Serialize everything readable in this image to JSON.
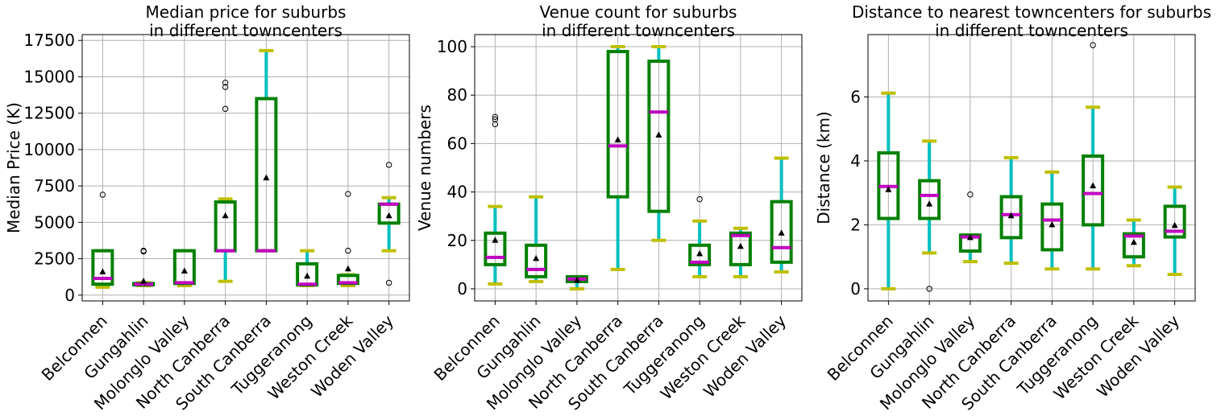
{
  "colors": {
    "box": "#008000",
    "whisker": "#00bfbf",
    "cap": "#bfbf00",
    "median": "#bf00bf",
    "mean": "#000000",
    "grid": "#b0b0b0"
  },
  "chart_data": [
    {
      "type": "box",
      "title_line1": "Median price for suburbs",
      "title_line2": " in different towncenters",
      "xlabel": "",
      "ylabel": "Median Price (K)",
      "ylim": [
        -400,
        17900
      ],
      "yticks": [
        0,
        2500,
        5000,
        7500,
        10000,
        12500,
        15000,
        17500
      ],
      "ytick_labels": [
        "0",
        "2500",
        "5000",
        "7500",
        "10000",
        "12500",
        "15000",
        "17500"
      ],
      "grid": true,
      "categories": [
        "Belconnen",
        "Gungahlin",
        "Molonglo Valley",
        "North Canberra",
        "South Canberra",
        "Tuggeranong",
        "Weston Creek",
        "Woden Valley"
      ],
      "boxes": [
        {
          "whislo": 550,
          "q1": 750,
          "med": 1150,
          "q3": 3050,
          "whishi": 3050,
          "mean": 1600,
          "fliers": [
            6900
          ]
        },
        {
          "whislo": 650,
          "q1": 700,
          "med": 750,
          "q3": 800,
          "whishi": 850,
          "mean": 950,
          "fliers": [
            3050,
            3000
          ]
        },
        {
          "whislo": 650,
          "q1": 800,
          "med": 850,
          "q3": 3050,
          "whishi": 3050,
          "mean": 1650,
          "fliers": []
        },
        {
          "whislo": 950,
          "q1": 3050,
          "med": 3050,
          "q3": 6400,
          "whishi": 6600,
          "mean": 5450,
          "fliers": [
            12800,
            14300,
            14600
          ]
        },
        {
          "whislo": 3050,
          "q1": 3050,
          "med": 3050,
          "q3": 13500,
          "whishi": 16800,
          "mean": 8050,
          "fliers": []
        },
        {
          "whislo": 650,
          "q1": 700,
          "med": 750,
          "q3": 2150,
          "whishi": 3050,
          "mean": 1300,
          "fliers": []
        },
        {
          "whislo": 650,
          "q1": 800,
          "med": 850,
          "q3": 1350,
          "whishi": 1400,
          "mean": 1800,
          "fliers": [
            3050,
            6950
          ]
        },
        {
          "whislo": 3050,
          "q1": 4950,
          "med": 6250,
          "q3": 6250,
          "whishi": 6700,
          "mean": 5450,
          "fliers": [
            8950,
            850
          ]
        }
      ]
    },
    {
      "type": "box",
      "title_line1": "Venue count for suburbs",
      "title_line2": " in different towncenters",
      "xlabel": "",
      "ylabel": "Venue numbers",
      "ylim": [
        -5,
        105
      ],
      "yticks": [
        0,
        20,
        40,
        60,
        80,
        100
      ],
      "ytick_labels": [
        "0",
        "20",
        "40",
        "60",
        "80",
        "100"
      ],
      "grid": true,
      "categories": [
        "Belconnen",
        "Gungahlin",
        "Molonglo Valley",
        "North Canberra",
        "South Canberra",
        "Tuggeranong",
        "Weston Creek",
        "Woden Valley"
      ],
      "boxes": [
        {
          "whislo": 2,
          "q1": 10,
          "med": 13,
          "q3": 23,
          "whishi": 34,
          "mean": 20,
          "fliers": [
            68,
            70,
            71
          ]
        },
        {
          "whislo": 3,
          "q1": 5,
          "med": 8,
          "q3": 18,
          "whishi": 38,
          "mean": 12.5,
          "fliers": []
        },
        {
          "whislo": 0,
          "q1": 3,
          "med": 4,
          "q3": 5,
          "whishi": 5,
          "mean": 3.5,
          "fliers": []
        },
        {
          "whislo": 8,
          "q1": 38,
          "med": 59,
          "q3": 98,
          "whishi": 100,
          "mean": 61.5,
          "fliers": []
        },
        {
          "whislo": 20,
          "q1": 32,
          "med": 73,
          "q3": 94,
          "whishi": 100,
          "mean": 63.5,
          "fliers": []
        },
        {
          "whislo": 5,
          "q1": 10,
          "med": 11,
          "q3": 18,
          "whishi": 28,
          "mean": 14.5,
          "fliers": [
            37
          ]
        },
        {
          "whislo": 5,
          "q1": 10,
          "med": 22,
          "q3": 23,
          "whishi": 25,
          "mean": 17.5,
          "fliers": []
        },
        {
          "whislo": 7,
          "q1": 11,
          "med": 17,
          "q3": 36,
          "whishi": 54,
          "mean": 23,
          "fliers": []
        }
      ]
    },
    {
      "type": "box",
      "title_line1": "Distance to nearest towncenters for suburbs",
      "title_line2": "in different towncenters",
      "xlabel": "",
      "ylabel": "Distance (km)",
      "ylim": [
        -0.38,
        7.95
      ],
      "yticks": [
        0,
        2,
        4,
        6
      ],
      "ytick_labels": [
        "0",
        "2",
        "4",
        "6"
      ],
      "grid": true,
      "categories": [
        "Belconnen",
        "Gungahlin",
        "Molonglo Valley",
        "North Canberra",
        "South Canberra",
        "Tuggeranong",
        "Weston Creek",
        "Woden Valley"
      ],
      "boxes": [
        {
          "whislo": 0.0,
          "q1": 2.2,
          "med": 3.2,
          "q3": 4.25,
          "whishi": 6.12,
          "mean": 3.1,
          "fliers": []
        },
        {
          "whislo": 1.12,
          "q1": 2.2,
          "med": 2.92,
          "q3": 3.38,
          "whishi": 4.62,
          "mean": 2.65,
          "fliers": [
            0.0
          ]
        },
        {
          "whislo": 0.85,
          "q1": 1.18,
          "med": 1.62,
          "q3": 1.68,
          "whishi": 1.68,
          "mean": 1.6,
          "fliers": [
            2.95
          ]
        },
        {
          "whislo": 0.8,
          "q1": 1.6,
          "med": 2.32,
          "q3": 2.88,
          "whishi": 4.1,
          "mean": 2.28,
          "fliers": []
        },
        {
          "whislo": 0.62,
          "q1": 1.22,
          "med": 2.15,
          "q3": 2.65,
          "whishi": 3.65,
          "mean": 2.0,
          "fliers": []
        },
        {
          "whislo": 0.62,
          "q1": 2.0,
          "med": 2.98,
          "q3": 4.15,
          "whishi": 5.68,
          "mean": 3.22,
          "fliers": [
            7.62
          ]
        },
        {
          "whislo": 0.72,
          "q1": 1.0,
          "med": 1.65,
          "q3": 1.72,
          "whishi": 2.15,
          "mean": 1.45,
          "fliers": []
        },
        {
          "whislo": 0.45,
          "q1": 1.62,
          "med": 1.8,
          "q3": 2.58,
          "whishi": 3.18,
          "mean": 1.98,
          "fliers": []
        }
      ]
    }
  ]
}
